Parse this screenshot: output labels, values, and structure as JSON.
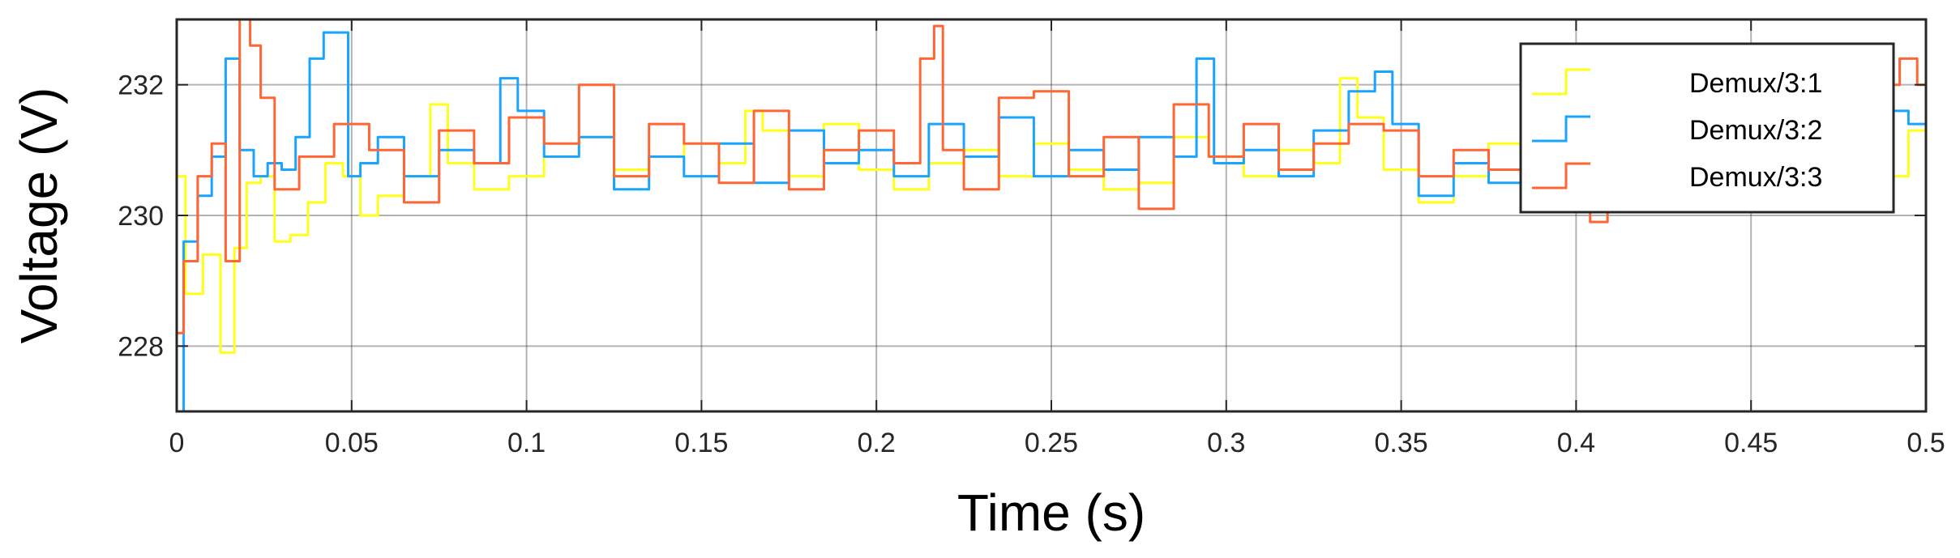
{
  "chart_data": {
    "type": "line",
    "title": "",
    "xlabel": "Time (s)",
    "ylabel": "Voltage (V)",
    "xlim": [
      0,
      0.5
    ],
    "ylim": [
      227,
      233
    ],
    "x_ticks": [
      0,
      0.05,
      0.1,
      0.15,
      0.2,
      0.25,
      0.3,
      0.35,
      0.4,
      0.45,
      0.5
    ],
    "x_tick_labels": [
      "0",
      "0.05",
      "0.1",
      "0.15",
      "0.2",
      "0.25",
      "0.3",
      "0.35",
      "0.4",
      "0.45",
      "0.5"
    ],
    "y_ticks": [
      228,
      230,
      232
    ],
    "y_tick_labels": [
      "228",
      "230",
      "232"
    ],
    "grid": true,
    "legend_position": "top-right",
    "series": [
      {
        "name": "Demux/3:1",
        "color": "#ffff1a",
        "x": [
          0,
          0.005,
          0.01,
          0.015,
          0.018,
          0.022,
          0.026,
          0.03,
          0.035,
          0.04,
          0.045,
          0.05,
          0.055,
          0.06,
          0.07,
          0.075,
          0.08,
          0.09,
          0.1,
          0.11,
          0.12,
          0.13,
          0.14,
          0.15,
          0.16,
          0.165,
          0.17,
          0.18,
          0.19,
          0.2,
          0.21,
          0.22,
          0.23,
          0.24,
          0.25,
          0.26,
          0.27,
          0.28,
          0.29,
          0.3,
          0.31,
          0.32,
          0.33,
          0.335,
          0.34,
          0.35,
          0.36,
          0.37,
          0.38,
          0.39,
          0.4,
          0.41,
          0.42,
          0.43,
          0.44,
          0.45,
          0.46,
          0.47,
          0.48,
          0.49,
          0.5
        ],
        "y": [
          230.6,
          228.8,
          229.4,
          227.9,
          229.5,
          230.5,
          230.6,
          229.6,
          229.7,
          230.2,
          230.8,
          230.6,
          230.0,
          230.3,
          230.6,
          231.7,
          230.8,
          230.4,
          230.6,
          230.9,
          231.2,
          230.7,
          230.9,
          231.1,
          230.8,
          231.6,
          231.3,
          230.6,
          231.4,
          230.7,
          230.4,
          230.8,
          231.0,
          230.6,
          231.1,
          230.7,
          230.4,
          230.5,
          231.2,
          230.9,
          230.6,
          231.0,
          230.8,
          232.1,
          231.5,
          230.7,
          230.2,
          230.6,
          231.1,
          230.9,
          230.8,
          231.0,
          230.6,
          230.9,
          231.0,
          230.8,
          231.1,
          230.7,
          230.9,
          230.6,
          231.3
        ]
      },
      {
        "name": "Demux/3:2",
        "color": "#1aa3ff",
        "x": [
          0,
          0.004,
          0.008,
          0.012,
          0.016,
          0.02,
          0.024,
          0.028,
          0.032,
          0.036,
          0.04,
          0.044,
          0.048,
          0.05,
          0.055,
          0.06,
          0.07,
          0.08,
          0.09,
          0.095,
          0.1,
          0.11,
          0.12,
          0.13,
          0.14,
          0.15,
          0.16,
          0.17,
          0.18,
          0.19,
          0.2,
          0.21,
          0.22,
          0.23,
          0.24,
          0.25,
          0.26,
          0.27,
          0.28,
          0.29,
          0.293,
          0.3,
          0.31,
          0.32,
          0.33,
          0.34,
          0.345,
          0.35,
          0.36,
          0.37,
          0.38,
          0.39,
          0.4,
          0.41,
          0.42,
          0.43,
          0.44,
          0.45,
          0.46,
          0.47,
          0.48,
          0.49,
          0.5
        ],
        "y": [
          226.8,
          229.6,
          230.3,
          230.9,
          232.4,
          231.0,
          230.6,
          230.8,
          230.7,
          231.2,
          232.4,
          232.8,
          232.8,
          230.6,
          230.8,
          231.2,
          230.6,
          231.0,
          230.8,
          232.1,
          231.6,
          230.9,
          231.2,
          230.4,
          230.9,
          230.6,
          231.1,
          230.5,
          231.3,
          230.8,
          231.0,
          230.6,
          231.4,
          230.9,
          231.5,
          230.6,
          231.0,
          230.7,
          231.2,
          230.9,
          232.4,
          230.8,
          231.0,
          230.6,
          231.3,
          231.9,
          232.2,
          231.4,
          230.3,
          230.8,
          230.5,
          231.0,
          230.8,
          231.1,
          230.7,
          231.2,
          230.9,
          230.6,
          231.0,
          231.4,
          231.8,
          231.6,
          231.4
        ]
      },
      {
        "name": "Demux/3:3",
        "color": "#ff6633",
        "x": [
          0,
          0.004,
          0.008,
          0.012,
          0.016,
          0.02,
          0.022,
          0.026,
          0.03,
          0.04,
          0.05,
          0.06,
          0.07,
          0.08,
          0.09,
          0.1,
          0.11,
          0.12,
          0.13,
          0.14,
          0.15,
          0.16,
          0.17,
          0.18,
          0.19,
          0.2,
          0.21,
          0.215,
          0.218,
          0.22,
          0.23,
          0.24,
          0.25,
          0.26,
          0.27,
          0.28,
          0.29,
          0.3,
          0.31,
          0.32,
          0.33,
          0.34,
          0.35,
          0.36,
          0.37,
          0.38,
          0.39,
          0.4,
          0.408,
          0.41,
          0.42,
          0.43,
          0.44,
          0.45,
          0.46,
          0.47,
          0.48,
          0.49,
          0.495,
          0.5
        ],
        "y": [
          228.2,
          229.3,
          230.6,
          231.1,
          229.3,
          233.0,
          232.6,
          231.8,
          230.4,
          230.9,
          231.4,
          231.0,
          230.2,
          231.3,
          230.8,
          231.5,
          231.1,
          232.0,
          230.6,
          231.4,
          231.1,
          230.5,
          231.6,
          230.4,
          231.0,
          231.3,
          230.8,
          232.4,
          232.9,
          231.0,
          230.4,
          231.8,
          231.9,
          230.6,
          231.2,
          230.1,
          231.7,
          230.9,
          231.4,
          230.7,
          231.1,
          231.4,
          231.3,
          230.6,
          231.0,
          230.7,
          231.3,
          230.5,
          229.9,
          230.8,
          231.0,
          230.8,
          231.2,
          230.6,
          231.3,
          231.0,
          231.6,
          232.0,
          232.4,
          232.0
        ]
      }
    ]
  }
}
